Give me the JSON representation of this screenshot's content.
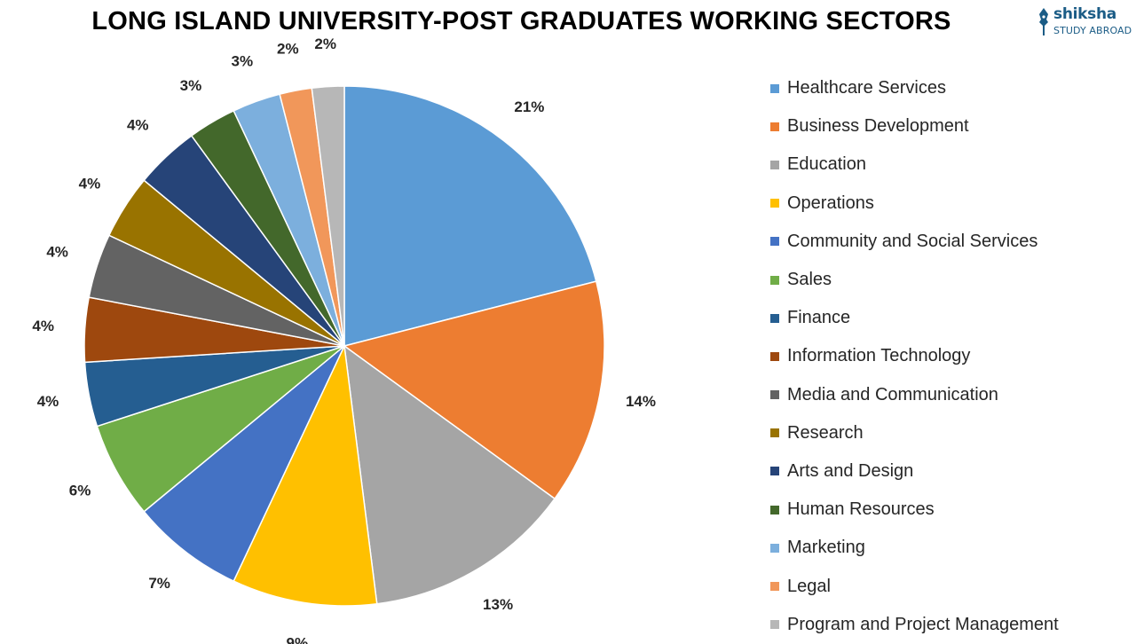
{
  "title": "LONG ISLAND UNIVERSITY-POST GRADUATES WORKING SECTORS",
  "logo": {
    "name": "shiksha",
    "tagline": "STUDY ABROAD",
    "color": "#1b5c86"
  },
  "chart_data": {
    "type": "pie",
    "title": "LONG ISLAND UNIVERSITY-POST GRADUATES WORKING SECTORS",
    "legend_position": "right",
    "unit": "%",
    "slices": [
      {
        "label": "Healthcare Services",
        "value": 21,
        "display": "21%",
        "color": "#5b9bd5"
      },
      {
        "label": "Business Development",
        "value": 14,
        "display": "14%",
        "color": "#ed7d31"
      },
      {
        "label": "Education",
        "value": 13,
        "display": "13%",
        "color": "#a5a5a5"
      },
      {
        "label": "Operations",
        "value": 9,
        "display": "9%",
        "color": "#ffc000"
      },
      {
        "label": "Community and Social Services",
        "value": 7,
        "display": "7%",
        "color": "#4472c4"
      },
      {
        "label": "Sales",
        "value": 6,
        "display": "6%",
        "color": "#70ad47"
      },
      {
        "label": "Finance",
        "value": 4,
        "display": "4%",
        "color": "#255e91"
      },
      {
        "label": "Information Technology",
        "value": 4,
        "display": "4%",
        "color": "#9e480e"
      },
      {
        "label": "Media and Communication",
        "value": 4,
        "display": "4%",
        "color": "#636363"
      },
      {
        "label": "Research",
        "value": 4,
        "display": "4%",
        "color": "#997300"
      },
      {
        "label": "Arts and Design",
        "value": 4,
        "display": "4%",
        "color": "#264478"
      },
      {
        "label": "Human Resources",
        "value": 3,
        "display": "3%",
        "color": "#43682b"
      },
      {
        "label": "Marketing",
        "value": 3,
        "display": "3%",
        "color": "#7cafdd"
      },
      {
        "label": "Legal",
        "value": 2,
        "display": "2%",
        "color": "#f1975a"
      },
      {
        "label": "Program and Project Management",
        "value": 2,
        "display": "2%",
        "color": "#b7b7b7"
      }
    ]
  }
}
